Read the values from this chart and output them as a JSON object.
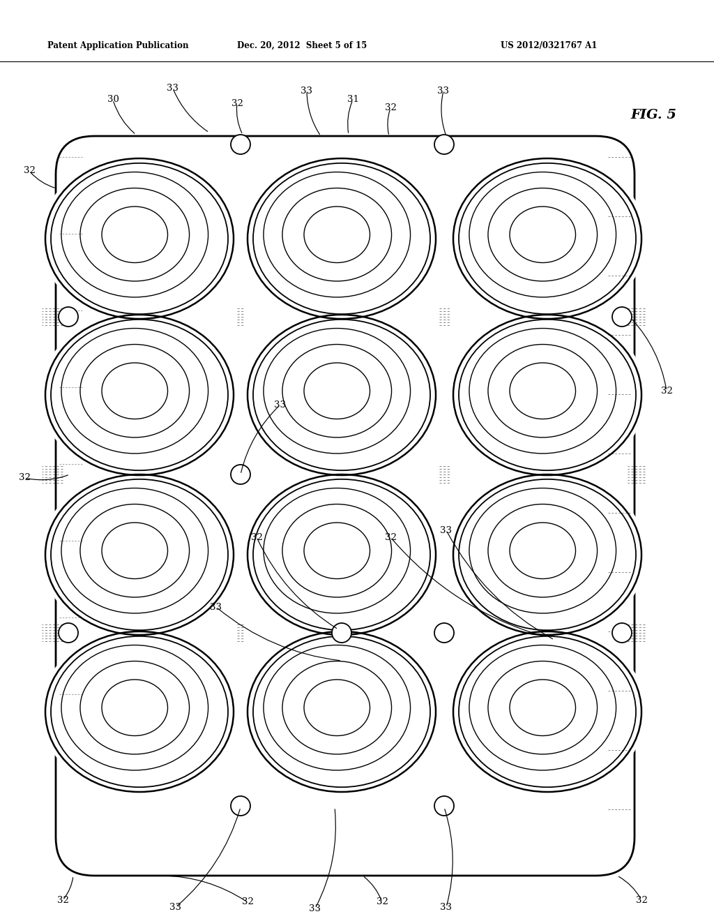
{
  "title_header": "Patent Application Publication",
  "date_header": "Dec. 20, 2012  Sheet 5 of 15",
  "patent_num": "US 2012/0321767 A1",
  "fig_label": "FIG. 5",
  "bg_color": "#ffffff",
  "line_color": "#000000",
  "figsize": [
    10.24,
    13.2
  ],
  "dpi": 100
}
